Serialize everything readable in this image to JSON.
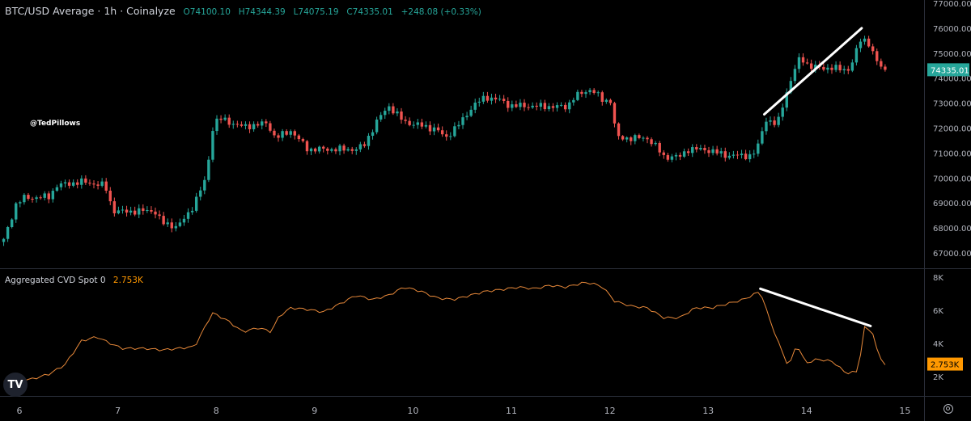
{
  "header": {
    "symbol": "BTC/USD Average · 1h · Coinalyze",
    "open": "O74100.10",
    "high": "H74344.39",
    "low": "L74075.19",
    "close": "C74335.01",
    "change": "+248.08 (+0.33%)"
  },
  "watermark": "@TedPillows",
  "logo": "TV",
  "colors": {
    "up": "#26a69a",
    "down": "#ef5350",
    "cvd": "#e8893a",
    "cvd_badge": "#ff9800",
    "price_badge": "#26a69a",
    "drawing": "#ffffff",
    "background": "#000000"
  },
  "icons": {
    "settings": "gear-icon",
    "logo": "tradingview-logo"
  },
  "chart_data": [
    {
      "type": "candlestick",
      "interval": "1h",
      "ylim": [
        66600,
        77200
      ],
      "y_ticks": [
        "77000.00",
        "76000.00",
        "75000.00",
        "74000.00",
        "73000.00",
        "72000.00",
        "71000.00",
        "70000.00",
        "69000.00",
        "68000.00",
        "67000.00"
      ],
      "last_price_label": "74335.01",
      "last_price": 74335.01,
      "close_path": [
        [
          5.84,
          67500
        ],
        [
          5.97,
          69000
        ],
        [
          6.05,
          69200
        ],
        [
          6.3,
          69250
        ],
        [
          6.38,
          69700
        ],
        [
          6.63,
          69850
        ],
        [
          6.79,
          69750
        ],
        [
          6.87,
          69700
        ],
        [
          6.95,
          68700
        ],
        [
          7.04,
          68650
        ],
        [
          7.37,
          68700
        ],
        [
          7.45,
          68200
        ],
        [
          7.61,
          68050
        ],
        [
          7.74,
          68700
        ],
        [
          7.82,
          69350
        ],
        [
          7.9,
          70000
        ],
        [
          7.96,
          71950
        ],
        [
          8.02,
          72400
        ],
        [
          8.27,
          72050
        ],
        [
          8.52,
          72200
        ],
        [
          8.6,
          71600
        ],
        [
          8.76,
          71900
        ],
        [
          8.93,
          71150
        ],
        [
          9.42,
          71150
        ],
        [
          9.5,
          71300
        ],
        [
          9.63,
          72250
        ],
        [
          9.75,
          72900
        ],
        [
          9.91,
          72250
        ],
        [
          10.08,
          72100
        ],
        [
          10.24,
          71950
        ],
        [
          10.33,
          71600
        ],
        [
          10.49,
          72250
        ],
        [
          10.61,
          72900
        ],
        [
          10.74,
          73250
        ],
        [
          10.9,
          73100
        ],
        [
          10.98,
          72900
        ],
        [
          11.56,
          72850
        ],
        [
          11.64,
          73250
        ],
        [
          11.81,
          73570
        ],
        [
          11.93,
          73100
        ],
        [
          12.01,
          73100
        ],
        [
          12.07,
          71600
        ],
        [
          12.38,
          71600
        ],
        [
          12.46,
          71300
        ],
        [
          12.55,
          70850
        ],
        [
          12.71,
          70850
        ],
        [
          12.79,
          71150
        ],
        [
          12.96,
          71150
        ],
        [
          13.2,
          70900
        ],
        [
          13.45,
          70900
        ],
        [
          13.53,
          71450
        ],
        [
          13.57,
          72400
        ],
        [
          13.7,
          72100
        ],
        [
          13.78,
          73250
        ],
        [
          13.9,
          74550
        ],
        [
          13.94,
          74860
        ],
        [
          14.03,
          74450
        ],
        [
          14.44,
          74350
        ],
        [
          14.56,
          75670
        ],
        [
          14.64,
          75350
        ],
        [
          14.7,
          74700
        ],
        [
          14.8,
          74335
        ]
      ],
      "trendline": [
        [
          13.57,
          72550
        ],
        [
          14.56,
          76000
        ]
      ]
    },
    {
      "type": "line",
      "name": "Aggregated CVD Spot 0",
      "value_label": "2.753K",
      "ylim": [
        1200,
        8200
      ],
      "y_ticks": [
        "8K",
        "6K",
        "4K",
        "2K"
      ],
      "y_tick_values": [
        8000,
        6000,
        4000,
        2000
      ],
      "points": [
        [
          5.84,
          1700
        ],
        [
          6.13,
          1850
        ],
        [
          6.3,
          2150
        ],
        [
          6.46,
          2700
        ],
        [
          6.63,
          4150
        ],
        [
          6.79,
          4400
        ],
        [
          6.87,
          4150
        ],
        [
          7.04,
          3700
        ],
        [
          7.28,
          3700
        ],
        [
          7.45,
          3600
        ],
        [
          7.61,
          3700
        ],
        [
          7.78,
          3800
        ],
        [
          7.9,
          5150
        ],
        [
          7.96,
          5850
        ],
        [
          8.11,
          5400
        ],
        [
          8.27,
          4700
        ],
        [
          8.43,
          4950
        ],
        [
          8.56,
          4700
        ],
        [
          8.64,
          5650
        ],
        [
          8.76,
          6150
        ],
        [
          8.93,
          6050
        ],
        [
          9.09,
          5900
        ],
        [
          9.26,
          6400
        ],
        [
          9.42,
          6900
        ],
        [
          9.59,
          6650
        ],
        [
          9.75,
          6900
        ],
        [
          9.91,
          7400
        ],
        [
          10.08,
          7150
        ],
        [
          10.24,
          6750
        ],
        [
          10.41,
          6650
        ],
        [
          10.58,
          6900
        ],
        [
          10.74,
          7150
        ],
        [
          10.9,
          7250
        ],
        [
          11.07,
          7400
        ],
        [
          11.23,
          7300
        ],
        [
          11.39,
          7500
        ],
        [
          11.56,
          7400
        ],
        [
          11.72,
          7650
        ],
        [
          11.81,
          7650
        ],
        [
          11.93,
          7400
        ],
        [
          12.05,
          6550
        ],
        [
          12.22,
          6250
        ],
        [
          12.38,
          6150
        ],
        [
          12.55,
          5550
        ],
        [
          12.71,
          5550
        ],
        [
          12.87,
          6150
        ],
        [
          13.04,
          6150
        ],
        [
          13.2,
          6400
        ],
        [
          13.36,
          6650
        ],
        [
          13.53,
          7150
        ],
        [
          13.61,
          5700
        ],
        [
          13.7,
          4250
        ],
        [
          13.82,
          2550
        ],
        [
          13.9,
          4000
        ],
        [
          13.99,
          2800
        ],
        [
          14.11,
          3050
        ],
        [
          14.27,
          2900
        ],
        [
          14.4,
          2200
        ],
        [
          14.52,
          2300
        ],
        [
          14.59,
          4950
        ],
        [
          14.67,
          4700
        ],
        [
          14.73,
          3250
        ],
        [
          14.8,
          2753
        ]
      ],
      "trendline": [
        [
          13.53,
          7300
        ],
        [
          14.65,
          5050
        ]
      ]
    }
  ],
  "x_axis": {
    "ticks": [
      "6",
      "7",
      "8",
      "9",
      "10",
      "11",
      "12",
      "13",
      "14",
      "15"
    ],
    "tick_values": [
      6,
      7,
      8,
      9,
      10,
      11,
      12,
      13,
      14,
      15
    ]
  }
}
